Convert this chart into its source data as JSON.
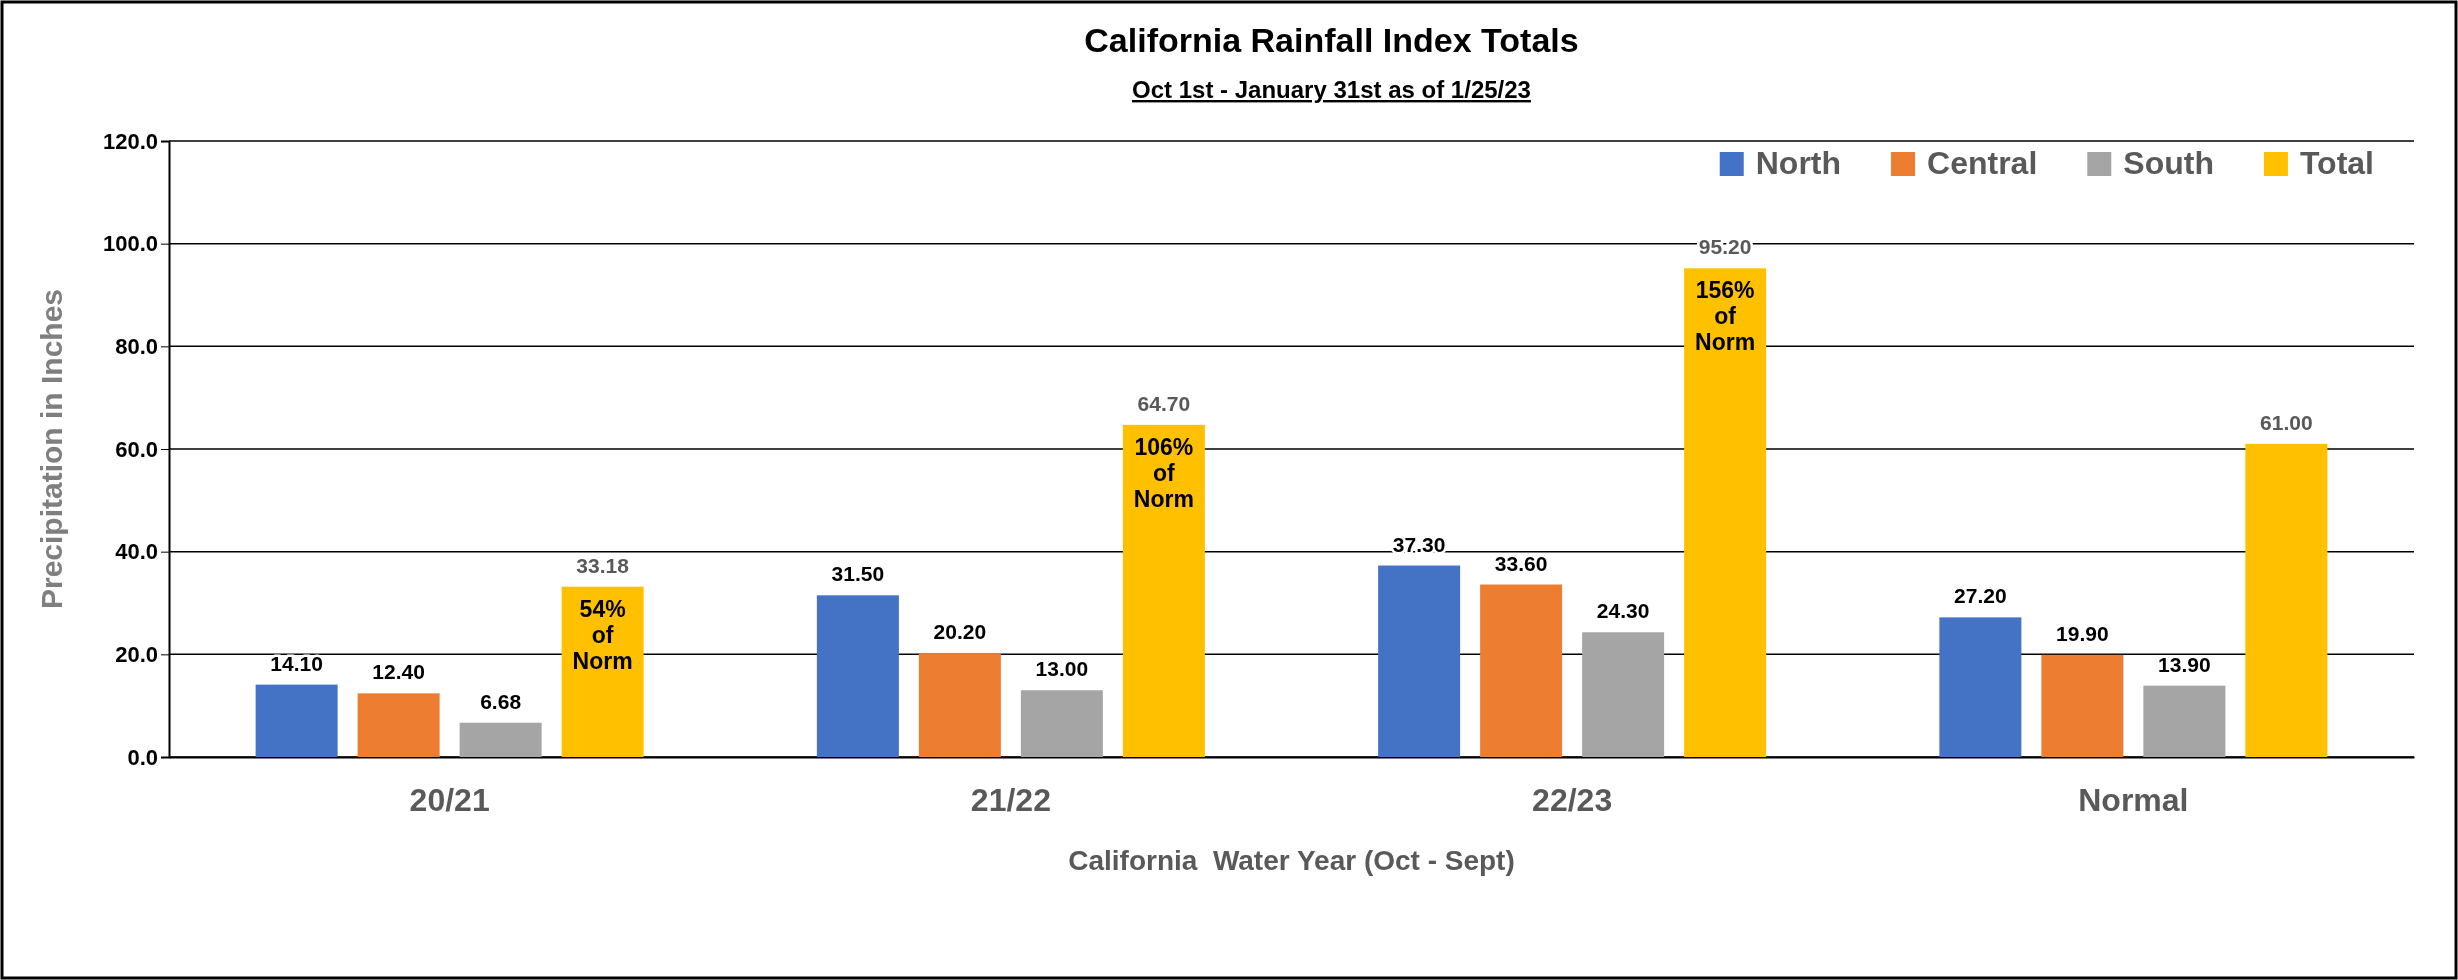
{
  "chart_data": {
    "type": "bar",
    "title": "California Rainfall Index Totals",
    "subtitle": "Oct 1st - January 31st as of 1/25/23",
    "xlabel": "California  Water Year (Oct - Sept)",
    "ylabel": "Precipitation in Inches",
    "categories": [
      "20/21",
      "21/22",
      "22/23",
      "Normal"
    ],
    "series": [
      {
        "name": "North",
        "color": "#4472c4",
        "values": [
          14.1,
          31.5,
          37.3,
          27.2
        ],
        "value_labels": [
          "14.10",
          "31.50",
          "37.30",
          "27.20"
        ]
      },
      {
        "name": "Central",
        "color": "#ed7d31",
        "values": [
          12.4,
          20.2,
          33.6,
          19.9
        ],
        "value_labels": [
          "12.40",
          "20.20",
          "33.60",
          "19.90"
        ]
      },
      {
        "name": "South",
        "color": "#a5a5a5",
        "values": [
          6.68,
          13.0,
          24.3,
          13.9
        ],
        "value_labels": [
          "6.68",
          "13.00",
          "24.30",
          "13.90"
        ]
      },
      {
        "name": "Total",
        "color": "#ffc000",
        "values": [
          33.18,
          64.7,
          95.2,
          61.0
        ],
        "value_labels": [
          "33.18",
          "64.70",
          "95.20",
          "61.00"
        ]
      }
    ],
    "ylim": [
      0,
      120
    ],
    "yticks": [
      {
        "value": 0,
        "label": "0.0"
      },
      {
        "value": 20,
        "label": "20.0"
      },
      {
        "value": 40,
        "label": "40.0"
      },
      {
        "value": 60,
        "label": "60.0"
      },
      {
        "value": 80,
        "label": "80.0"
      },
      {
        "value": 100,
        "label": "100.0"
      },
      {
        "value": 120,
        "label": "120.0"
      }
    ],
    "grid": "y",
    "legend": "top right",
    "annotations": [
      "54% of Norm",
      "106% of Norm",
      "156% of Norm"
    ]
  }
}
